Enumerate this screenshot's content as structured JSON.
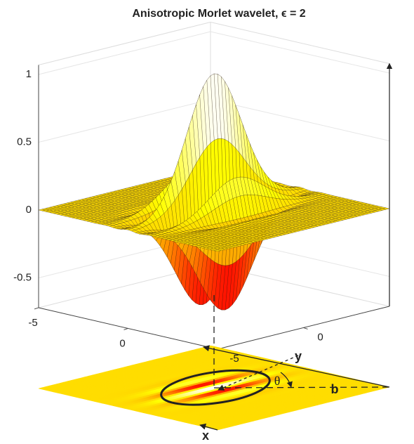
{
  "chart_data": {
    "type": "surface",
    "title": "Anisotropic Morlet wavelet, ϵ = 2",
    "zlim": [
      -0.72,
      1.07
    ],
    "zticks": [
      -0.5,
      0,
      0.5,
      1
    ],
    "xlim": [
      -5,
      5
    ],
    "xticks": [
      -5,
      0
    ],
    "ylim": [
      -5,
      5
    ],
    "yticks": [
      0,
      -5
    ],
    "annotations": [
      "x",
      "y",
      "b",
      "θ"
    ]
  }
}
